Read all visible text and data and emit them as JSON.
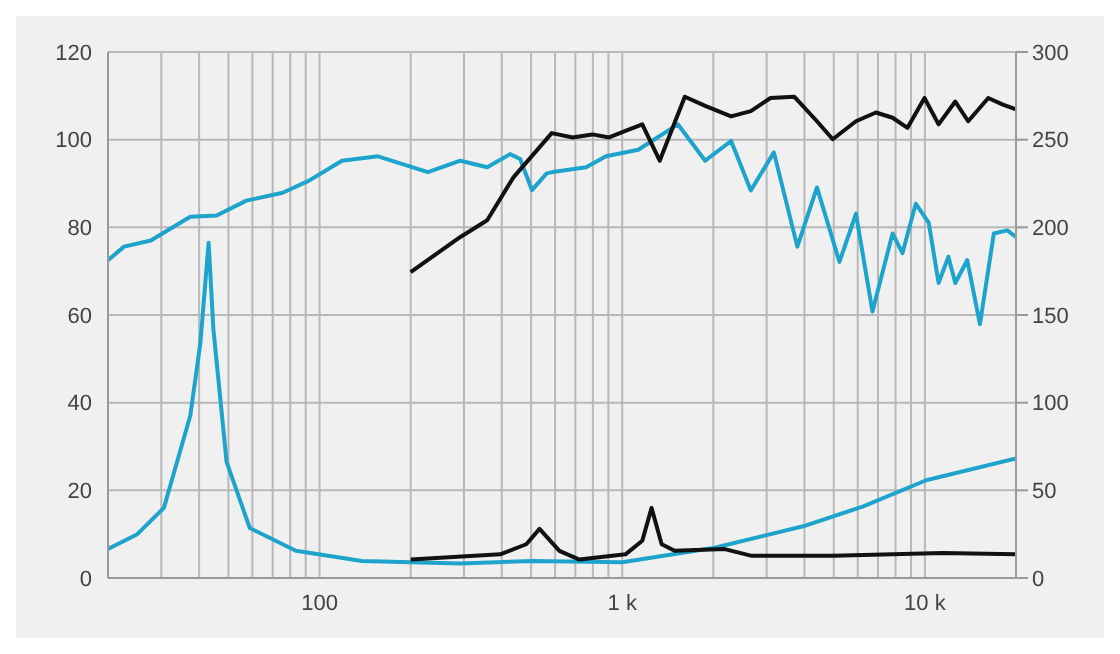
{
  "chart_data": {
    "type": "line",
    "log": "x",
    "xlim": [
      20,
      20000
    ],
    "ylim": [
      0,
      120
    ],
    "y2lim": [
      0,
      300
    ],
    "xticks": [
      {
        "value": 20,
        "label": null
      },
      {
        "value": 30,
        "label": null
      },
      {
        "value": 40,
        "label": null
      },
      {
        "value": 50,
        "label": null
      },
      {
        "value": 60,
        "label": null
      },
      {
        "value": 70,
        "label": null
      },
      {
        "value": 80,
        "label": null
      },
      {
        "value": 90,
        "label": null
      },
      100,
      {
        "value": 200,
        "label": null
      },
      {
        "value": 300,
        "label": null
      },
      {
        "value": 400,
        "label": null
      },
      {
        "value": 500,
        "label": null
      },
      {
        "value": 600,
        "label": null
      },
      {
        "value": 700,
        "label": null
      },
      {
        "value": 800,
        "label": null
      },
      {
        "value": 900,
        "label": null
      },
      {
        "value": 1000,
        "label": "1 k"
      },
      {
        "value": 2000,
        "label": null
      },
      {
        "value": 3000,
        "label": null
      },
      {
        "value": 4000,
        "label": null
      },
      {
        "value": 5000,
        "label": null
      },
      {
        "value": 6000,
        "label": null
      },
      {
        "value": 7000,
        "label": null
      },
      {
        "value": 8000,
        "label": null
      },
      {
        "value": 9000,
        "label": null
      },
      {
        "value": 10000,
        "label": "10 k"
      },
      {
        "value": 20000,
        "label": null
      }
    ],
    "yticks": [
      0,
      20,
      40,
      60,
      80,
      100,
      120
    ],
    "y2ticks": [
      0,
      50,
      100,
      150,
      200,
      250,
      300
    ],
    "grid": true,
    "marker": "none",
    "line_style": "solid",
    "series": [
      {
        "color": "#1ea4cc",
        "x": [
          20,
          22.6,
          27.7,
          37.4,
          45.7,
          57.3,
          75.5,
          92,
          118.6,
          156,
          228,
          292,
          358,
          426,
          460,
          503,
          563,
          590,
          760,
          884,
          1130,
          1527,
          1880,
          2290,
          2660,
          3170,
          3790,
          4400,
          5220,
          5920,
          6710,
          7820,
          8430,
          9330,
          10300,
          11100,
          11960,
          12600,
          13800,
          15200,
          16900,
          18700,
          20000
        ],
        "values": [
          72.5,
          75.6,
          77,
          82.4,
          82.7,
          86.1,
          87.9,
          90.6,
          95.2,
          96.2,
          92.6,
          95.2,
          93.7,
          96.7,
          95.6,
          88.5,
          92.3,
          92.6,
          93.7,
          96.2,
          97.7,
          103.5,
          95.2,
          99.7,
          88.4,
          97.1,
          75.6,
          89.1,
          72.1,
          83.1,
          60.8,
          78.6,
          74.1,
          85.4,
          81,
          67.3,
          73.3,
          67.3,
          72.5,
          57.9,
          78.6,
          79.3,
          77.8
        ]
      },
      {
        "color": "#111111",
        "x": [
          200,
          292,
          358,
          437,
          585,
          686,
          797,
          905,
          1025,
          1165,
          1330,
          1610,
          1880,
          2290,
          2660,
          3090,
          3700,
          4400,
          4960,
          5920,
          6890,
          7820,
          8760,
          9970,
          11100,
          12600,
          13900,
          16200,
          18100,
          20000
        ],
        "values": [
          69.8,
          77.8,
          81.6,
          91.4,
          101.5,
          100.5,
          101.2,
          100.5,
          102,
          103.5,
          95.2,
          109.8,
          107.7,
          105.3,
          106.5,
          109.5,
          109.8,
          104.2,
          100.1,
          104.2,
          106.2,
          105,
          102.7,
          109.5,
          103.5,
          108.7,
          104.2,
          109.5,
          108,
          106.9
        ]
      },
      {
        "color": "#1ea4cc",
        "x": [
          20,
          25,
          30.6,
          37.4,
          40.4,
          43,
          44.6,
          49.3,
          58.8,
          83.5,
          138,
          292,
          508,
          1000,
          2020,
          3960,
          6230,
          10100,
          20000
        ],
        "values": [
          6.6,
          10,
          16,
          37,
          53.7,
          76.5,
          56.7,
          26.5,
          11.4,
          6.2,
          3.9,
          3.3,
          3.9,
          3.6,
          6.9,
          11.8,
          16.3,
          22.3,
          27.3
        ]
      },
      {
        "color": "#111111",
        "x": [
          200,
          395,
          482,
          533,
          620,
          722,
          1025,
          1165,
          1250,
          1350,
          1490,
          2180,
          2660,
          5000,
          11400,
          20000
        ],
        "values": [
          4.2,
          5.4,
          7.7,
          11.2,
          6.2,
          4.2,
          5.4,
          8.5,
          16,
          7.7,
          6.2,
          6.6,
          5.1,
          5.1,
          5.7,
          5.4
        ]
      }
    ]
  }
}
